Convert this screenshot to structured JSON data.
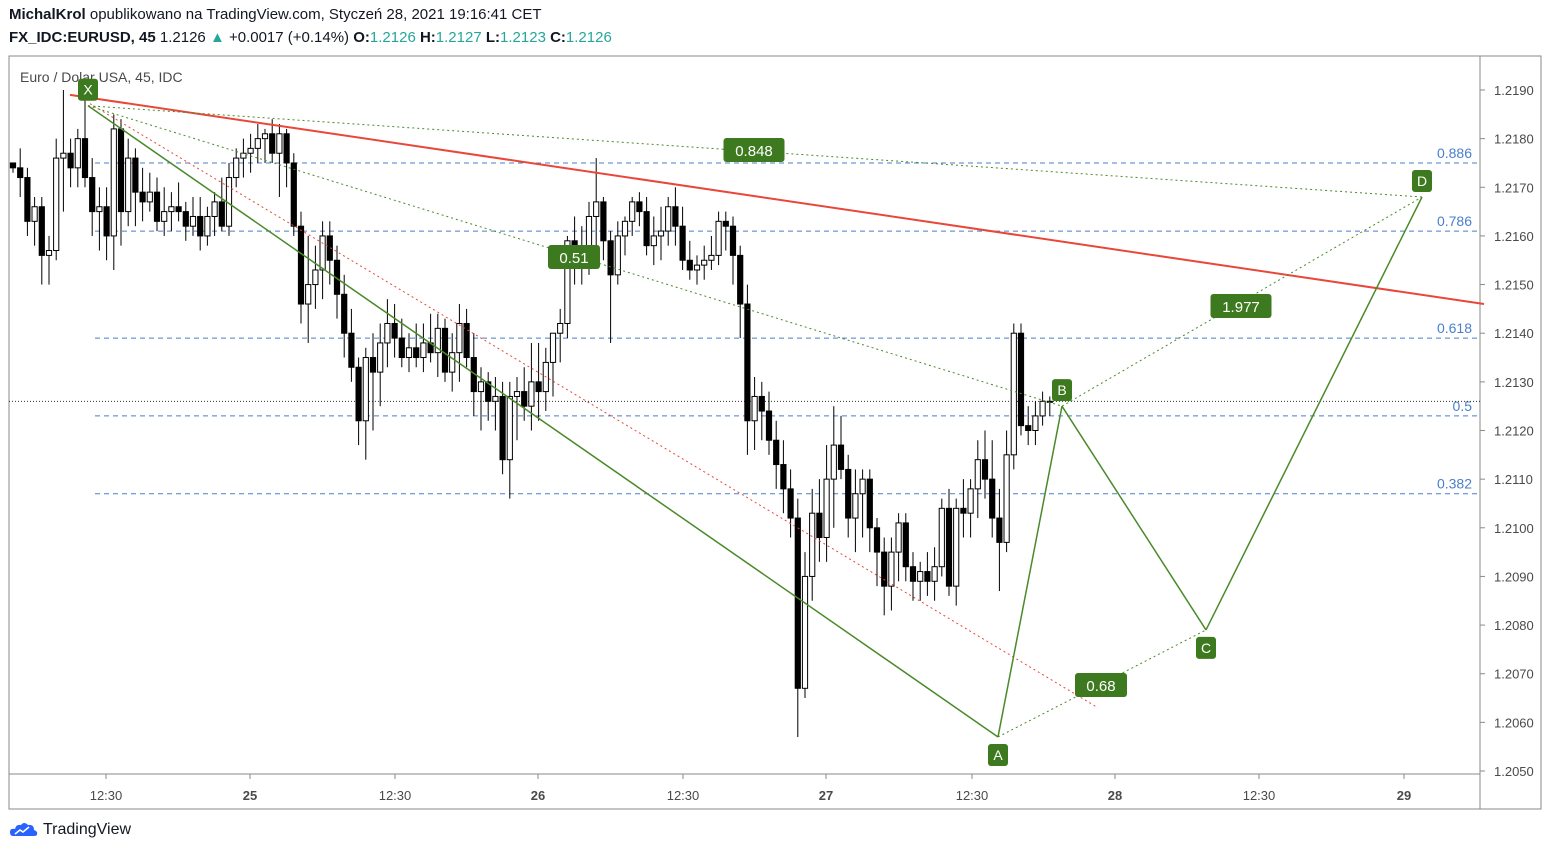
{
  "header": {
    "author": "MichalKrol",
    "published_text": "opublikowano na TradingView.com, Styczeń 28, 2021 19:16:41 CET",
    "symbol": "FX_IDC:EURUSD, 45",
    "last": "1.2126",
    "change": "+0.0017 (+0.14%)",
    "o_label": "O:",
    "o": "1.2126",
    "h_label": "H:",
    "h": "1.2127",
    "l_label": "L:",
    "l": "1.2123",
    "c_label": "C:",
    "c": "1.2126"
  },
  "footer": {
    "brand": "TradingView"
  },
  "colors": {
    "up_body": "#ffffff",
    "down_body": "#000000",
    "pattern": "#4a8a2a",
    "trendline": "#e8473a",
    "fib": "#4a7fc9",
    "axis_text": "#4a4a4a"
  },
  "chart_data": {
    "type": "candlestick",
    "title": "Euro / Dolar USA, 45, IDC",
    "ylim": [
      1.205,
      1.2195
    ],
    "y_ticks": [
      "1.2190",
      "1.2180",
      "1.2170",
      "1.2160",
      "1.2150",
      "1.2140",
      "1.2130",
      "1.2120",
      "1.2110",
      "1.2100",
      "1.2090",
      "1.2080",
      "1.2070",
      "1.2060",
      "1.2050"
    ],
    "x_ticks": [
      "12:30",
      "25",
      "12:30",
      "26",
      "12:30",
      "27",
      "12:30",
      "28",
      "12:30",
      "29"
    ],
    "current_price": 1.2126,
    "fib_levels": [
      {
        "label": "0.886",
        "value": 1.2175
      },
      {
        "label": "0.786",
        "value": 1.2161
      },
      {
        "label": "0.618",
        "value": 1.2139
      },
      {
        "label": "0.5",
        "value": 1.2123
      },
      {
        "label": "0.382",
        "value": 1.2107
      }
    ],
    "pattern_points": [
      {
        "label": "X",
        "value": 1.2188
      },
      {
        "label": "A",
        "value": 1.2057
      },
      {
        "label": "B",
        "value": 1.2125
      },
      {
        "label": "C",
        "value": 1.2079
      },
      {
        "label": "D",
        "value": 1.2168
      }
    ],
    "ratios": [
      "0.51",
      "0.848",
      "0.68",
      "1.977"
    ],
    "trendline": {
      "start": 1.2189,
      "end": 1.2146
    },
    "candles": [
      [
        1.2175,
        1.2175,
        1.2173,
        1.2174
      ],
      [
        1.2174,
        1.2178,
        1.2168,
        1.2172
      ],
      [
        1.2172,
        1.2174,
        1.216,
        1.2163
      ],
      [
        1.2163,
        1.2168,
        1.2158,
        1.2166
      ],
      [
        1.2166,
        1.2168,
        1.215,
        1.2156
      ],
      [
        1.2156,
        1.216,
        1.215,
        1.2157
      ],
      [
        1.2157,
        1.218,
        1.2155,
        1.2176
      ],
      [
        1.2176,
        1.219,
        1.2165,
        1.2177
      ],
      [
        1.2177,
        1.218,
        1.217,
        1.2174
      ],
      [
        1.2174,
        1.2182,
        1.217,
        1.218
      ],
      [
        1.218,
        1.2188,
        1.217,
        1.2172
      ],
      [
        1.2172,
        1.2176,
        1.216,
        1.2165
      ],
      [
        1.2165,
        1.217,
        1.2157,
        1.2166
      ],
      [
        1.2166,
        1.217,
        1.2155,
        1.216
      ],
      [
        1.216,
        1.2185,
        1.2153,
        1.2182
      ],
      [
        1.2182,
        1.2184,
        1.2158,
        1.2165
      ],
      [
        1.2165,
        1.218,
        1.2162,
        1.2176
      ],
      [
        1.2176,
        1.2178,
        1.2162,
        1.2169
      ],
      [
        1.2169,
        1.2174,
        1.2163,
        1.2167
      ],
      [
        1.2167,
        1.2173,
        1.2165,
        1.2169
      ],
      [
        1.2169,
        1.2172,
        1.2161,
        1.2163
      ],
      [
        1.2163,
        1.217,
        1.216,
        1.2165
      ],
      [
        1.2165,
        1.2169,
        1.2161,
        1.2166
      ],
      [
        1.2166,
        1.2171,
        1.2163,
        1.2165
      ],
      [
        1.2165,
        1.2167,
        1.2159,
        1.2162
      ],
      [
        1.2162,
        1.2168,
        1.216,
        1.2164
      ],
      [
        1.2164,
        1.2168,
        1.2157,
        1.216
      ],
      [
        1.216,
        1.2166,
        1.2158,
        1.2164
      ],
      [
        1.2164,
        1.2169,
        1.216,
        1.2167
      ],
      [
        1.2167,
        1.2172,
        1.2161,
        1.2162
      ],
      [
        1.2162,
        1.2175,
        1.216,
        1.2172
      ],
      [
        1.2172,
        1.2178,
        1.217,
        1.2176
      ],
      [
        1.2176,
        1.218,
        1.2172,
        1.2177
      ],
      [
        1.2177,
        1.2181,
        1.2173,
        1.2178
      ],
      [
        1.2178,
        1.2183,
        1.2175,
        1.218
      ],
      [
        1.218,
        1.2182,
        1.2175,
        1.2181
      ],
      [
        1.2181,
        1.2184,
        1.2175,
        1.2177
      ],
      [
        1.2177,
        1.2183,
        1.2168,
        1.2181
      ],
      [
        1.2181,
        1.2182,
        1.217,
        1.2175
      ],
      [
        1.2175,
        1.2177,
        1.216,
        1.2162
      ],
      [
        1.2162,
        1.2165,
        1.2142,
        1.2146
      ],
      [
        1.2146,
        1.216,
        1.2138,
        1.215
      ],
      [
        1.215,
        1.2158,
        1.2145,
        1.2153
      ],
      [
        1.2153,
        1.2163,
        1.2147,
        1.216
      ],
      [
        1.216,
        1.2163,
        1.215,
        1.2155
      ],
      [
        1.2155,
        1.2158,
        1.2143,
        1.2148
      ],
      [
        1.2148,
        1.2152,
        1.2135,
        1.214
      ],
      [
        1.214,
        1.2145,
        1.213,
        1.2133
      ],
      [
        1.2133,
        1.2135,
        1.2117,
        1.2122
      ],
      [
        1.2122,
        1.2137,
        1.2114,
        1.2135
      ],
      [
        1.2135,
        1.214,
        1.212,
        1.2132
      ],
      [
        1.2132,
        1.2142,
        1.2125,
        1.2138
      ],
      [
        1.2138,
        1.2147,
        1.2133,
        1.2142
      ],
      [
        1.2142,
        1.2146,
        1.2135,
        1.2139
      ],
      [
        1.2139,
        1.2143,
        1.2133,
        1.2135
      ],
      [
        1.2135,
        1.214,
        1.2132,
        1.2137
      ],
      [
        1.2137,
        1.2142,
        1.2133,
        1.2135
      ],
      [
        1.2135,
        1.2142,
        1.2132,
        1.2138
      ],
      [
        1.2138,
        1.2144,
        1.2134,
        1.2136
      ],
      [
        1.2136,
        1.2144,
        1.2131,
        1.2141
      ],
      [
        1.2141,
        1.2143,
        1.213,
        1.2132
      ],
      [
        1.2132,
        1.214,
        1.2128,
        1.2136
      ],
      [
        1.2136,
        1.2146,
        1.213,
        1.2142
      ],
      [
        1.2142,
        1.2145,
        1.2133,
        1.2135
      ],
      [
        1.2135,
        1.214,
        1.2123,
        1.2128
      ],
      [
        1.2128,
        1.2133,
        1.212,
        1.213
      ],
      [
        1.213,
        1.2132,
        1.2122,
        1.2126
      ],
      [
        1.2126,
        1.2131,
        1.212,
        1.2127
      ],
      [
        1.2127,
        1.213,
        1.2111,
        1.2114
      ],
      [
        1.2114,
        1.213,
        1.2106,
        1.2127
      ],
      [
        1.2127,
        1.2131,
        1.2118,
        1.2128
      ],
      [
        1.2128,
        1.2133,
        1.2122,
        1.2125
      ],
      [
        1.2125,
        1.2138,
        1.212,
        1.213
      ],
      [
        1.213,
        1.2138,
        1.2122,
        1.2128
      ],
      [
        1.2128,
        1.2137,
        1.2124,
        1.2134
      ],
      [
        1.2134,
        1.214,
        1.2127,
        1.214
      ],
      [
        1.214,
        1.2145,
        1.2134,
        1.2142
      ],
      [
        1.2142,
        1.216,
        1.2139,
        1.2159
      ],
      [
        1.2159,
        1.2164,
        1.215,
        1.2155
      ],
      [
        1.2155,
        1.2162,
        1.215,
        1.2157
      ],
      [
        1.2157,
        1.2167,
        1.2152,
        1.2164
      ],
      [
        1.2164,
        1.2176,
        1.2158,
        1.2167
      ],
      [
        1.2167,
        1.2168,
        1.2155,
        1.2159
      ],
      [
        1.2159,
        1.2161,
        1.2138,
        1.2152
      ],
      [
        1.2152,
        1.2163,
        1.215,
        1.216
      ],
      [
        1.216,
        1.2164,
        1.2156,
        1.2163
      ],
      [
        1.2163,
        1.2168,
        1.216,
        1.2167
      ],
      [
        1.2167,
        1.2169,
        1.2162,
        1.2165
      ],
      [
        1.2165,
        1.2168,
        1.2156,
        1.2158
      ],
      [
        1.2158,
        1.2164,
        1.2154,
        1.216
      ],
      [
        1.216,
        1.2166,
        1.2155,
        1.2161
      ],
      [
        1.2161,
        1.2168,
        1.2158,
        1.2166
      ],
      [
        1.2166,
        1.217,
        1.2158,
        1.2162
      ],
      [
        1.2162,
        1.2166,
        1.2153,
        1.2155
      ],
      [
        1.2155,
        1.2159,
        1.2151,
        1.2153
      ],
      [
        1.2153,
        1.2156,
        1.215,
        1.2154
      ],
      [
        1.2154,
        1.2158,
        1.2151,
        1.2155
      ],
      [
        1.2155,
        1.216,
        1.2153,
        1.2156
      ],
      [
        1.2156,
        1.2165,
        1.2154,
        1.2163
      ],
      [
        1.2163,
        1.2165,
        1.2157,
        1.2162
      ],
      [
        1.2162,
        1.2164,
        1.215,
        1.2156
      ],
      [
        1.2156,
        1.2158,
        1.2139,
        1.2146
      ],
      [
        1.2146,
        1.215,
        1.2115,
        1.2122
      ],
      [
        1.2122,
        1.2131,
        1.2116,
        1.2127
      ],
      [
        1.2127,
        1.213,
        1.2118,
        1.2124
      ],
      [
        1.2124,
        1.2128,
        1.2115,
        1.2118
      ],
      [
        1.2118,
        1.2122,
        1.2108,
        1.2113
      ],
      [
        1.2113,
        1.2118,
        1.2103,
        1.2108
      ],
      [
        1.2108,
        1.2112,
        1.2098,
        1.2102
      ],
      [
        1.2102,
        1.2106,
        1.2057,
        1.2067
      ],
      [
        1.2067,
        1.2095,
        1.2065,
        1.209
      ],
      [
        1.209,
        1.2108,
        1.2085,
        1.2103
      ],
      [
        1.2103,
        1.211,
        1.2093,
        1.2098
      ],
      [
        1.2098,
        1.2117,
        1.2093,
        1.211
      ],
      [
        1.211,
        1.2125,
        1.21,
        1.2117
      ],
      [
        1.2117,
        1.2123,
        1.211,
        1.2112
      ],
      [
        1.2112,
        1.2115,
        1.2098,
        1.2102
      ],
      [
        1.2102,
        1.2112,
        1.2095,
        1.2107
      ],
      [
        1.2107,
        1.2112,
        1.2098,
        1.211
      ],
      [
        1.211,
        1.2112,
        1.2095,
        1.21
      ],
      [
        1.21,
        1.2102,
        1.2088,
        1.2095
      ],
      [
        1.2095,
        1.2098,
        1.2082,
        1.2088
      ],
      [
        1.2088,
        1.2098,
        1.2083,
        1.2095
      ],
      [
        1.2095,
        1.2103,
        1.2089,
        1.2101
      ],
      [
        1.2101,
        1.2103,
        1.2089,
        1.2092
      ],
      [
        1.2092,
        1.2095,
        1.2085,
        1.2089
      ],
      [
        1.2089,
        1.2093,
        1.2085,
        1.2091
      ],
      [
        1.2091,
        1.2095,
        1.2086,
        1.2089
      ],
      [
        1.2089,
        1.2096,
        1.2085,
        1.2092
      ],
      [
        1.2092,
        1.2106,
        1.209,
        1.2104
      ],
      [
        1.2104,
        1.2108,
        1.2086,
        1.2088
      ],
      [
        1.2088,
        1.2106,
        1.2084,
        1.2104
      ],
      [
        1.2104,
        1.211,
        1.2098,
        1.2103
      ],
      [
        1.2103,
        1.211,
        1.2098,
        1.2108
      ],
      [
        1.2108,
        1.2118,
        1.2102,
        1.2114
      ],
      [
        1.2114,
        1.212,
        1.2106,
        1.211
      ],
      [
        1.211,
        1.2118,
        1.2098,
        1.2102
      ],
      [
        1.2102,
        1.2108,
        1.2087,
        1.2097
      ],
      [
        1.2097,
        1.212,
        1.2095,
        1.2115
      ],
      [
        1.2115,
        1.2142,
        1.2112,
        1.214
      ],
      [
        1.214,
        1.2142,
        1.2119,
        1.2121
      ],
      [
        1.2121,
        1.2125,
        1.2117,
        1.212
      ],
      [
        1.212,
        1.2126,
        1.2117,
        1.2123
      ],
      [
        1.2123,
        1.2128,
        1.2121,
        1.2126
      ],
      [
        1.2126,
        1.2127,
        1.2123,
        1.2126
      ]
    ]
  }
}
